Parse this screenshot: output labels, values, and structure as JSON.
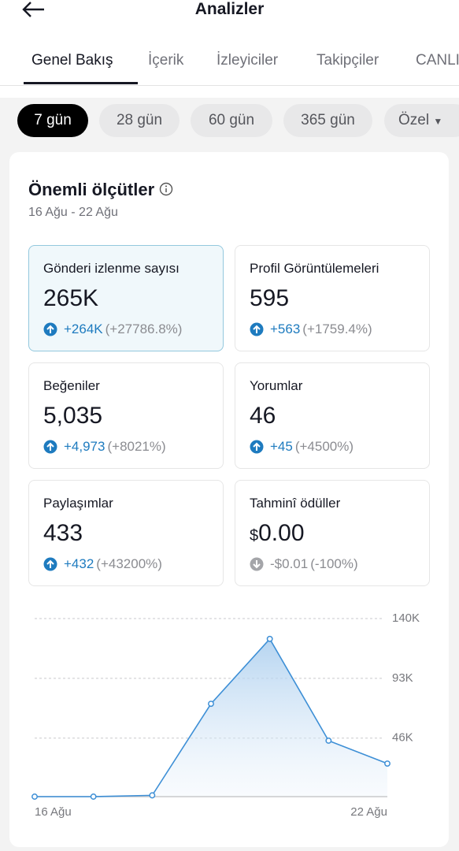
{
  "header": {
    "title": "Analizler"
  },
  "tabs": [
    "Genel Bakış",
    "İçerik",
    "İzleyiciler",
    "Takipçiler",
    "CANLI"
  ],
  "ranges": [
    "7 gün",
    "28 gün",
    "60 gün",
    "365 gün",
    "Özel"
  ],
  "metrics": {
    "title": "Önemli ölçütler",
    "date_range": "16 Ağu - 22 Ağu",
    "cards": [
      {
        "label": "Gönderi izlenme sayısı",
        "value": "265K",
        "change": "+264K",
        "percent": "(+27786.8%)"
      },
      {
        "label": "Profil Görüntülemeleri",
        "value": "595",
        "change": "+563",
        "percent": "(+1759.4%)"
      },
      {
        "label": "Beğeniler",
        "value": "5,035",
        "change": "+4,973",
        "percent": "(+8021%)"
      },
      {
        "label": "Yorumlar",
        "value": "46",
        "change": "+45",
        "percent": "(+4500%)"
      },
      {
        "label": "Paylaşımlar",
        "value": "433",
        "change": "+432",
        "percent": "(+43200%)"
      },
      {
        "label": "Tahminî ödüller",
        "currency": "$",
        "value": "0.00",
        "change": "-$0.01",
        "percent": "(-100%)"
      }
    ]
  },
  "chart_data": {
    "type": "line",
    "categories": [
      "16 Ağu",
      null,
      null,
      null,
      null,
      null,
      "22 Ağu"
    ],
    "series": [
      {
        "color": "#3d8fd6",
        "values": [
          0,
          0,
          1000,
          73000,
          124000,
          44000,
          26000
        ]
      }
    ],
    "ylim": [
      0,
      140000
    ],
    "yticks": [
      {
        "value": 46000,
        "label": "46K"
      },
      {
        "value": 93000,
        "label": "93K"
      },
      {
        "value": 140000,
        "label": "140K"
      }
    ],
    "grid": true
  }
}
